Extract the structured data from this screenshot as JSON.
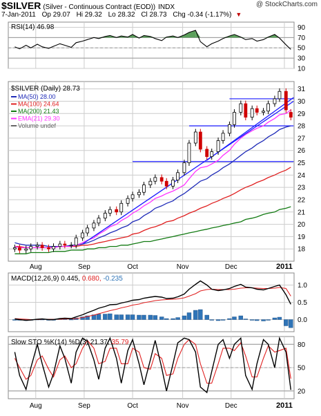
{
  "header": {
    "symbol": "$SILVER",
    "name": "(Silver - Continuous Contract (EOD))",
    "exchange": "INDX",
    "date": "7-Jan-2011",
    "open": "Op 29.07",
    "high": "Hi 29.32",
    "low": "Lo 28.32",
    "close": "Cl 28.73",
    "change": "Chg -0.34 (-1.17%)",
    "change_arrow": "▼",
    "watermark": "@ StockCharts.com"
  },
  "colors": {
    "ma50": "#1f2bb8",
    "ma100": "#e02020",
    "ma200": "#127a12",
    "ema21": "#ff33ff",
    "trend": "#1a1aff",
    "bull": "#000000",
    "bear": "#d00000",
    "volume": "#3070c0",
    "macd_hist": "#2f74b7",
    "rsi_fill": "#3f8f3f"
  },
  "chart_data": [
    {
      "type": "line",
      "panel": "rsi",
      "title": "RSI(14) 46.98",
      "ylim": [
        10,
        100
      ],
      "ticks": [
        90,
        70,
        50,
        30,
        10
      ],
      "x": [
        "2010-07-20",
        "2010-07-23",
        "2010-07-27",
        "2010-07-30",
        "2010-08-03",
        "2010-08-06",
        "2010-08-10",
        "2010-08-13",
        "2010-08-17",
        "2010-08-20",
        "2010-08-24",
        "2010-08-27",
        "2010-08-31",
        "2010-09-03",
        "2010-09-07",
        "2010-09-10",
        "2010-09-14",
        "2010-09-17",
        "2010-09-21",
        "2010-09-24",
        "2010-09-28",
        "2010-10-01",
        "2010-10-05",
        "2010-10-08",
        "2010-10-12",
        "2010-10-15",
        "2010-10-19",
        "2010-10-22",
        "2010-10-26",
        "2010-10-29",
        "2010-11-02",
        "2010-11-05",
        "2010-11-09",
        "2010-11-12",
        "2010-11-16",
        "2010-11-19",
        "2010-11-23",
        "2010-11-26",
        "2010-11-30",
        "2010-12-03",
        "2010-12-07",
        "2010-12-10",
        "2010-12-14",
        "2010-12-17",
        "2010-12-21",
        "2010-12-24",
        "2010-12-28",
        "2010-12-31",
        "2011-01-04",
        "2011-01-07"
      ],
      "values": [
        52,
        48,
        55,
        50,
        57,
        52,
        49,
        53,
        58,
        55,
        51,
        60,
        63,
        66,
        70,
        68,
        72,
        74,
        70,
        73,
        71,
        76,
        69,
        74,
        72,
        68,
        64,
        71,
        73,
        70,
        75,
        80,
        84,
        62,
        52,
        58,
        63,
        68,
        73,
        76,
        71,
        66,
        68,
        63,
        66,
        71,
        76,
        69,
        56,
        47
      ]
    },
    {
      "type": "candlestick",
      "panel": "price",
      "title": "$SILVER (Daily) 28.73",
      "ylim": [
        17,
        31.6
      ],
      "ticks": [
        31,
        30,
        29,
        28,
        27,
        26,
        25,
        24,
        23,
        22,
        21,
        20,
        19,
        18
      ],
      "xticks": [
        {
          "label": "Aug",
          "date": "2010-08-02"
        },
        {
          "label": "Sep",
          "date": "2010-09-01"
        },
        {
          "label": "Oct",
          "date": "2010-10-01"
        },
        {
          "label": "Nov",
          "date": "2010-11-01"
        },
        {
          "label": "Dec",
          "date": "2010-12-01"
        },
        {
          "label": "2011",
          "date": "2011-01-03"
        }
      ],
      "legend": [
        {
          "label": "MA(50) 28.00",
          "color": "#1f2bb8"
        },
        {
          "label": "MA(100) 24.64",
          "color": "#e02020"
        },
        {
          "label": "MA(200) 21.43",
          "color": "#127a12"
        },
        {
          "label": "EMA(21) 29.30",
          "color": "#ff33ff"
        },
        {
          "label": "Volume undef",
          "color": "#666666"
        }
      ],
      "x": [
        "2010-07-20",
        "2010-07-23",
        "2010-07-27",
        "2010-07-30",
        "2010-08-03",
        "2010-08-06",
        "2010-08-10",
        "2010-08-13",
        "2010-08-17",
        "2010-08-20",
        "2010-08-24",
        "2010-08-27",
        "2010-08-31",
        "2010-09-03",
        "2010-09-07",
        "2010-09-10",
        "2010-09-14",
        "2010-09-17",
        "2010-09-21",
        "2010-09-24",
        "2010-09-28",
        "2010-10-01",
        "2010-10-05",
        "2010-10-08",
        "2010-10-12",
        "2010-10-15",
        "2010-10-19",
        "2010-10-22",
        "2010-10-26",
        "2010-10-29",
        "2010-11-02",
        "2010-11-05",
        "2010-11-09",
        "2010-11-12",
        "2010-11-16",
        "2010-11-19",
        "2010-11-23",
        "2010-11-26",
        "2010-11-30",
        "2010-12-03",
        "2010-12-07",
        "2010-12-10",
        "2010-12-14",
        "2010-12-17",
        "2010-12-21",
        "2010-12-24",
        "2010-12-28",
        "2010-12-31",
        "2011-01-04",
        "2011-01-07"
      ],
      "close": [
        18.1,
        17.9,
        18.0,
        18.2,
        18.3,
        18.1,
        18.0,
        18.2,
        18.4,
        18.3,
        18.3,
        18.9,
        19.3,
        19.7,
        20.1,
        20.5,
        20.9,
        21.2,
        21.0,
        21.7,
        22.1,
        22.4,
        22.6,
        23.2,
        23.5,
        23.8,
        23.5,
        23.1,
        23.6,
        24.2,
        25.0,
        26.6,
        27.5,
        26.1,
        25.5,
        25.9,
        26.8,
        27.4,
        28.1,
        29.1,
        29.8,
        28.7,
        29.4,
        29.1,
        29.2,
        29.8,
        30.2,
        30.8,
        29.3,
        28.7
      ],
      "open": [
        18.0,
        18.1,
        17.9,
        18.0,
        18.2,
        18.3,
        18.1,
        18.0,
        18.2,
        18.4,
        18.3,
        18.3,
        18.9,
        19.3,
        19.7,
        20.1,
        20.5,
        20.9,
        21.2,
        21.0,
        21.7,
        22.1,
        22.4,
        22.6,
        23.2,
        23.5,
        23.8,
        23.5,
        23.1,
        23.6,
        24.2,
        25.0,
        26.6,
        27.5,
        26.1,
        25.5,
        25.9,
        26.8,
        27.4,
        28.1,
        29.1,
        29.8,
        28.7,
        29.4,
        29.1,
        29.2,
        29.8,
        30.2,
        30.8,
        29.1
      ],
      "ma50": [
        18.5,
        18.4,
        18.3,
        18.3,
        18.3,
        18.3,
        18.2,
        18.2,
        18.2,
        18.2,
        18.3,
        18.3,
        18.4,
        18.5,
        18.7,
        18.9,
        19.1,
        19.3,
        19.5,
        19.7,
        19.9,
        20.2,
        20.4,
        20.7,
        21.0,
        21.3,
        21.5,
        21.7,
        21.9,
        22.2,
        22.5,
        22.8,
        23.2,
        23.5,
        23.7,
        24.0,
        24.3,
        24.6,
        24.9,
        25.2,
        25.6,
        25.9,
        26.2,
        26.5,
        26.8,
        27.1,
        27.4,
        27.7,
        27.9,
        28.0
      ],
      "ma100": [
        18.2,
        18.2,
        18.1,
        18.1,
        18.1,
        18.1,
        18.1,
        18.1,
        18.2,
        18.2,
        18.2,
        18.2,
        18.3,
        18.3,
        18.4,
        18.5,
        18.6,
        18.7,
        18.8,
        18.9,
        19.0,
        19.2,
        19.3,
        19.5,
        19.7,
        19.8,
        20.0,
        20.2,
        20.3,
        20.5,
        20.7,
        20.9,
        21.1,
        21.3,
        21.5,
        21.7,
        21.9,
        22.1,
        22.3,
        22.5,
        22.8,
        23.0,
        23.2,
        23.4,
        23.6,
        23.8,
        24.0,
        24.2,
        24.4,
        24.64
      ],
      "ma200": [
        17.6,
        17.6,
        17.6,
        17.7,
        17.7,
        17.7,
        17.7,
        17.8,
        17.8,
        17.8,
        17.9,
        17.9,
        17.9,
        18.0,
        18.0,
        18.1,
        18.1,
        18.2,
        18.2,
        18.3,
        18.3,
        18.4,
        18.5,
        18.6,
        18.6,
        18.7,
        18.8,
        18.9,
        19.0,
        19.1,
        19.2,
        19.3,
        19.4,
        19.5,
        19.6,
        19.7,
        19.8,
        19.9,
        20.0,
        20.1,
        20.2,
        20.4,
        20.5,
        20.6,
        20.8,
        20.9,
        21.0,
        21.2,
        21.3,
        21.43
      ],
      "ema21": [
        18.2,
        18.1,
        18.1,
        18.1,
        18.1,
        18.1,
        18.1,
        18.1,
        18.2,
        18.2,
        18.2,
        18.3,
        18.5,
        18.7,
        18.9,
        19.2,
        19.5,
        19.8,
        20.0,
        20.3,
        20.6,
        20.9,
        21.2,
        21.5,
        21.8,
        22.1,
        22.3,
        22.5,
        22.7,
        22.9,
        23.2,
        23.7,
        24.3,
        24.6,
        24.7,
        24.9,
        25.2,
        25.6,
        26.0,
        26.5,
        27.0,
        27.3,
        27.6,
        27.8,
        28.0,
        28.3,
        28.6,
        28.9,
        29.0,
        29.3
      ],
      "horizontal_lines": [
        {
          "y": 30.2,
          "from": "2010-11-30",
          "to": "2011-01-07"
        },
        {
          "y": 28.0,
          "from": "2010-11-05",
          "to": "2011-01-07"
        },
        {
          "y": 25.1,
          "from": "2010-10-01",
          "to": "2011-01-07"
        }
      ],
      "trendlines": [
        {
          "from": "2010-08-31",
          "y1": 18.4,
          "to": "2011-01-07",
          "y2": 30.0
        },
        {
          "from": "2010-11-16",
          "y1": 25.2,
          "to": "2011-01-07",
          "y2": 30.3
        }
      ]
    },
    {
      "type": "line",
      "panel": "macd",
      "title": "MACD(12,26,9)",
      "title_values": [
        "0.445",
        "0.680",
        "-0.235"
      ],
      "ylim": [
        -0.35,
        1.35
      ],
      "ticks": [
        1.0,
        0.5,
        0.0
      ],
      "x": [
        "2010-07-20",
        "2010-07-23",
        "2010-07-27",
        "2010-07-30",
        "2010-08-03",
        "2010-08-06",
        "2010-08-10",
        "2010-08-13",
        "2010-08-17",
        "2010-08-20",
        "2010-08-24",
        "2010-08-27",
        "2010-08-31",
        "2010-09-03",
        "2010-09-07",
        "2010-09-10",
        "2010-09-14",
        "2010-09-17",
        "2010-09-21",
        "2010-09-24",
        "2010-09-28",
        "2010-10-01",
        "2010-10-05",
        "2010-10-08",
        "2010-10-12",
        "2010-10-15",
        "2010-10-19",
        "2010-10-22",
        "2010-10-26",
        "2010-10-29",
        "2010-11-02",
        "2010-11-05",
        "2010-11-09",
        "2010-11-12",
        "2010-11-16",
        "2010-11-19",
        "2010-11-23",
        "2010-11-26",
        "2010-11-30",
        "2010-12-03",
        "2010-12-07",
        "2010-12-10",
        "2010-12-14",
        "2010-12-17",
        "2010-12-21",
        "2010-12-24",
        "2010-12-28",
        "2010-12-31",
        "2011-01-04",
        "2011-01-07"
      ],
      "macd": [
        0.02,
        0.0,
        -0.02,
        -0.01,
        0.01,
        0.02,
        0.0,
        0.0,
        0.03,
        0.04,
        0.03,
        0.08,
        0.14,
        0.2,
        0.27,
        0.33,
        0.38,
        0.43,
        0.44,
        0.48,
        0.52,
        0.56,
        0.58,
        0.62,
        0.65,
        0.67,
        0.65,
        0.61,
        0.62,
        0.66,
        0.74,
        0.88,
        1.02,
        1.12,
        1.0,
        0.88,
        0.84,
        0.86,
        0.9,
        0.96,
        1.02,
        0.94,
        0.92,
        0.88,
        0.86,
        0.9,
        0.96,
        1.0,
        0.72,
        0.445
      ],
      "signal": [
        0.03,
        0.02,
        0.01,
        0.0,
        0.0,
        0.01,
        0.01,
        0.01,
        0.01,
        0.02,
        0.02,
        0.03,
        0.06,
        0.09,
        0.13,
        0.17,
        0.22,
        0.26,
        0.3,
        0.34,
        0.38,
        0.42,
        0.45,
        0.49,
        0.52,
        0.55,
        0.57,
        0.58,
        0.59,
        0.6,
        0.63,
        0.68,
        0.75,
        0.83,
        0.87,
        0.88,
        0.87,
        0.87,
        0.87,
        0.88,
        0.91,
        0.92,
        0.92,
        0.91,
        0.9,
        0.9,
        0.91,
        0.93,
        0.9,
        0.68
      ],
      "histogram": [
        -0.01,
        -0.02,
        -0.03,
        -0.01,
        0.01,
        0.01,
        -0.01,
        -0.01,
        0.02,
        0.02,
        0.01,
        0.05,
        0.08,
        0.11,
        0.14,
        0.16,
        0.16,
        0.17,
        0.14,
        0.14,
        0.14,
        0.14,
        0.13,
        0.13,
        0.13,
        0.12,
        0.08,
        0.03,
        0.03,
        0.06,
        0.11,
        0.2,
        0.27,
        0.29,
        0.13,
        0.0,
        -0.03,
        -0.01,
        0.03,
        0.08,
        0.11,
        0.02,
        0.0,
        -0.03,
        -0.04,
        0.0,
        0.05,
        0.07,
        -0.18,
        -0.235
      ]
    },
    {
      "type": "line",
      "panel": "stochastic",
      "title": "Slow STO %K(14) %D(3)",
      "title_values": [
        "21.37",
        "35.79"
      ],
      "ylim": [
        10,
        90
      ],
      "ticks": [
        80,
        50,
        20
      ],
      "xticks": [
        {
          "label": "Aug",
          "date": "2010-08-02"
        },
        {
          "label": "Sep",
          "date": "2010-09-01"
        },
        {
          "label": "Oct",
          "date": "2010-10-01"
        },
        {
          "label": "Nov",
          "date": "2010-11-01"
        },
        {
          "label": "Dec",
          "date": "2010-12-01"
        },
        {
          "label": "2011",
          "date": "2011-01-03"
        }
      ],
      "x": [
        "2010-07-20",
        "2010-07-23",
        "2010-07-27",
        "2010-07-30",
        "2010-08-03",
        "2010-08-06",
        "2010-08-10",
        "2010-08-13",
        "2010-08-17",
        "2010-08-20",
        "2010-08-24",
        "2010-08-27",
        "2010-08-31",
        "2010-09-03",
        "2010-09-07",
        "2010-09-10",
        "2010-09-14",
        "2010-09-17",
        "2010-09-21",
        "2010-09-24",
        "2010-09-28",
        "2010-10-01",
        "2010-10-05",
        "2010-10-08",
        "2010-10-12",
        "2010-10-15",
        "2010-10-19",
        "2010-10-22",
        "2010-10-26",
        "2010-10-29",
        "2010-11-02",
        "2010-11-05",
        "2010-11-09",
        "2010-11-12",
        "2010-11-16",
        "2010-11-19",
        "2010-11-23",
        "2010-11-26",
        "2010-11-30",
        "2010-12-03",
        "2010-12-07",
        "2010-12-10",
        "2010-12-14",
        "2010-12-17",
        "2010-12-21",
        "2010-12-24",
        "2010-12-28",
        "2010-12-31",
        "2011-01-04",
        "2011-01-07"
      ],
      "k": [
        70,
        40,
        22,
        50,
        80,
        55,
        25,
        42,
        78,
        62,
        30,
        70,
        88,
        84,
        60,
        35,
        75,
        88,
        62,
        30,
        72,
        86,
        55,
        28,
        60,
        85,
        50,
        20,
        55,
        82,
        88,
        86,
        70,
        25,
        18,
        45,
        80,
        86,
        62,
        80,
        88,
        40,
        22,
        55,
        86,
        80,
        50,
        88,
        70,
        21.37
      ],
      "d": [
        62,
        50,
        35,
        40,
        60,
        65,
        48,
        38,
        60,
        65,
        50,
        55,
        75,
        85,
        75,
        55,
        58,
        75,
        75,
        55,
        55,
        75,
        70,
        50,
        48,
        68,
        62,
        40,
        42,
        62,
        80,
        86,
        80,
        55,
        30,
        30,
        55,
        75,
        75,
        72,
        82,
        65,
        38,
        38,
        62,
        78,
        70,
        72,
        75,
        35.79
      ]
    }
  ]
}
